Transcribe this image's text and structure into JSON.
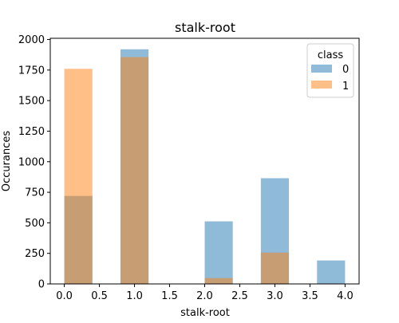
{
  "chart_data": {
    "type": "bar",
    "title": "stalk-root",
    "xlabel": "stalk-root",
    "ylabel": "Occurances",
    "xlim": [
      -0.2,
      4.2
    ],
    "ylim": [
      0,
      2010
    ],
    "xticks": [
      0.0,
      0.5,
      1.0,
      1.5,
      2.0,
      2.5,
      3.0,
      3.5,
      4.0
    ],
    "xtick_labels": [
      "0.0",
      "0.5",
      "1.0",
      "1.5",
      "2.0",
      "2.5",
      "3.0",
      "3.5",
      "4.0"
    ],
    "yticks": [
      0,
      250,
      500,
      750,
      1000,
      1250,
      1500,
      1750,
      2000
    ],
    "ytick_labels": [
      "0",
      "250",
      "500",
      "750",
      "1000",
      "1250",
      "1500",
      "1750",
      "2000"
    ],
    "bin_edges": [
      0.0,
      0.4,
      0.8,
      1.2,
      1.6,
      2.0,
      2.4,
      2.8,
      3.2,
      3.6,
      4.0
    ],
    "series": [
      {
        "name": "0",
        "color": "#1f77b4",
        "alpha": 0.5,
        "values": [
          720,
          0,
          1920,
          0,
          0,
          512,
          0,
          865,
          0,
          192
        ]
      },
      {
        "name": "1",
        "color": "#ff7f0e",
        "alpha": 0.5,
        "values": [
          1760,
          0,
          1856,
          0,
          0,
          48,
          0,
          256,
          0,
          0
        ]
      }
    ],
    "legend": {
      "title": "class",
      "placement": "top-right"
    },
    "grid": false
  }
}
